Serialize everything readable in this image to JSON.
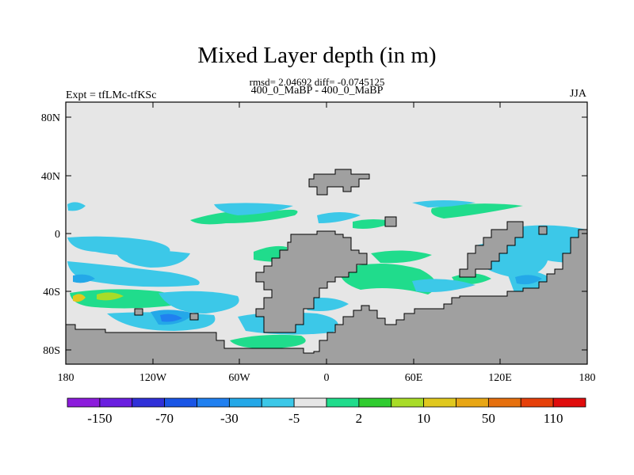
{
  "title": "Mixed Layer depth (in m)",
  "stats_line": "rmsd= 2.04692 diff= -0.0745125",
  "subtitle": "400_0_MaBP - 400_0_MaBP",
  "left_label": "Expt = tfLMc-tfKSc",
  "right_label": "JJA",
  "lat_ticks": [
    "80N",
    "40N",
    "0",
    "40S",
    "80S"
  ],
  "lon_ticks": [
    "180",
    "120W",
    "60W",
    "0",
    "60E",
    "120E",
    "180"
  ],
  "colorbar": {
    "colors": [
      "#8c1cdc",
      "#6a1fe0",
      "#3030d8",
      "#1a55e6",
      "#2080f0",
      "#24a8e8",
      "#3cc8e8",
      "#e6e6e6",
      "#20dc8c",
      "#30cc30",
      "#a8dc28",
      "#e0c81e",
      "#e8a614",
      "#e6700e",
      "#e6400a",
      "#e00c0c"
    ],
    "labels": [
      "-150",
      "-70",
      "-30",
      "-5",
      "2",
      "10",
      "50",
      "110"
    ]
  },
  "map": {
    "background_color": "#e6e6e6",
    "land_color": "#a0a0a0"
  }
}
